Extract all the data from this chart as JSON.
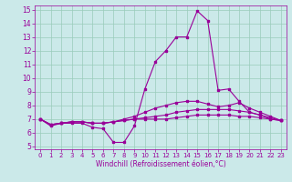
{
  "xlabel": "Windchill (Refroidissement éolien,°C)",
  "xlim": [
    0,
    23
  ],
  "ylim": [
    5,
    15
  ],
  "yticks": [
    5,
    6,
    7,
    8,
    9,
    10,
    11,
    12,
    13,
    14,
    15
  ],
  "xticks": [
    0,
    1,
    2,
    3,
    4,
    5,
    6,
    7,
    8,
    9,
    10,
    11,
    12,
    13,
    14,
    15,
    16,
    17,
    18,
    19,
    20,
    21,
    22,
    23
  ],
  "background_color": "#cbe9e9",
  "grid_color": "#99ccbb",
  "line_color": "#990099",
  "line1": [
    7.0,
    6.5,
    6.7,
    6.7,
    6.7,
    6.4,
    6.3,
    5.3,
    5.3,
    6.5,
    9.2,
    11.2,
    12.0,
    13.0,
    13.0,
    14.9,
    14.2,
    9.1,
    9.2,
    8.3,
    7.5,
    7.3,
    7.0,
    6.9
  ],
  "line2": [
    7.0,
    6.6,
    6.7,
    6.8,
    6.8,
    6.7,
    6.7,
    6.8,
    6.9,
    7.0,
    7.0,
    7.0,
    7.0,
    7.1,
    7.2,
    7.3,
    7.3,
    7.3,
    7.3,
    7.2,
    7.2,
    7.1,
    7.0,
    6.9
  ],
  "line3": [
    7.0,
    6.6,
    6.7,
    6.8,
    6.8,
    6.7,
    6.7,
    6.8,
    6.9,
    7.0,
    7.1,
    7.2,
    7.3,
    7.5,
    7.6,
    7.7,
    7.7,
    7.7,
    7.7,
    7.6,
    7.5,
    7.3,
    7.1,
    6.9
  ],
  "line4": [
    7.0,
    6.6,
    6.7,
    6.8,
    6.8,
    6.7,
    6.7,
    6.8,
    7.0,
    7.2,
    7.5,
    7.8,
    8.0,
    8.2,
    8.3,
    8.3,
    8.1,
    7.9,
    8.0,
    8.2,
    7.8,
    7.5,
    7.2,
    6.9
  ]
}
